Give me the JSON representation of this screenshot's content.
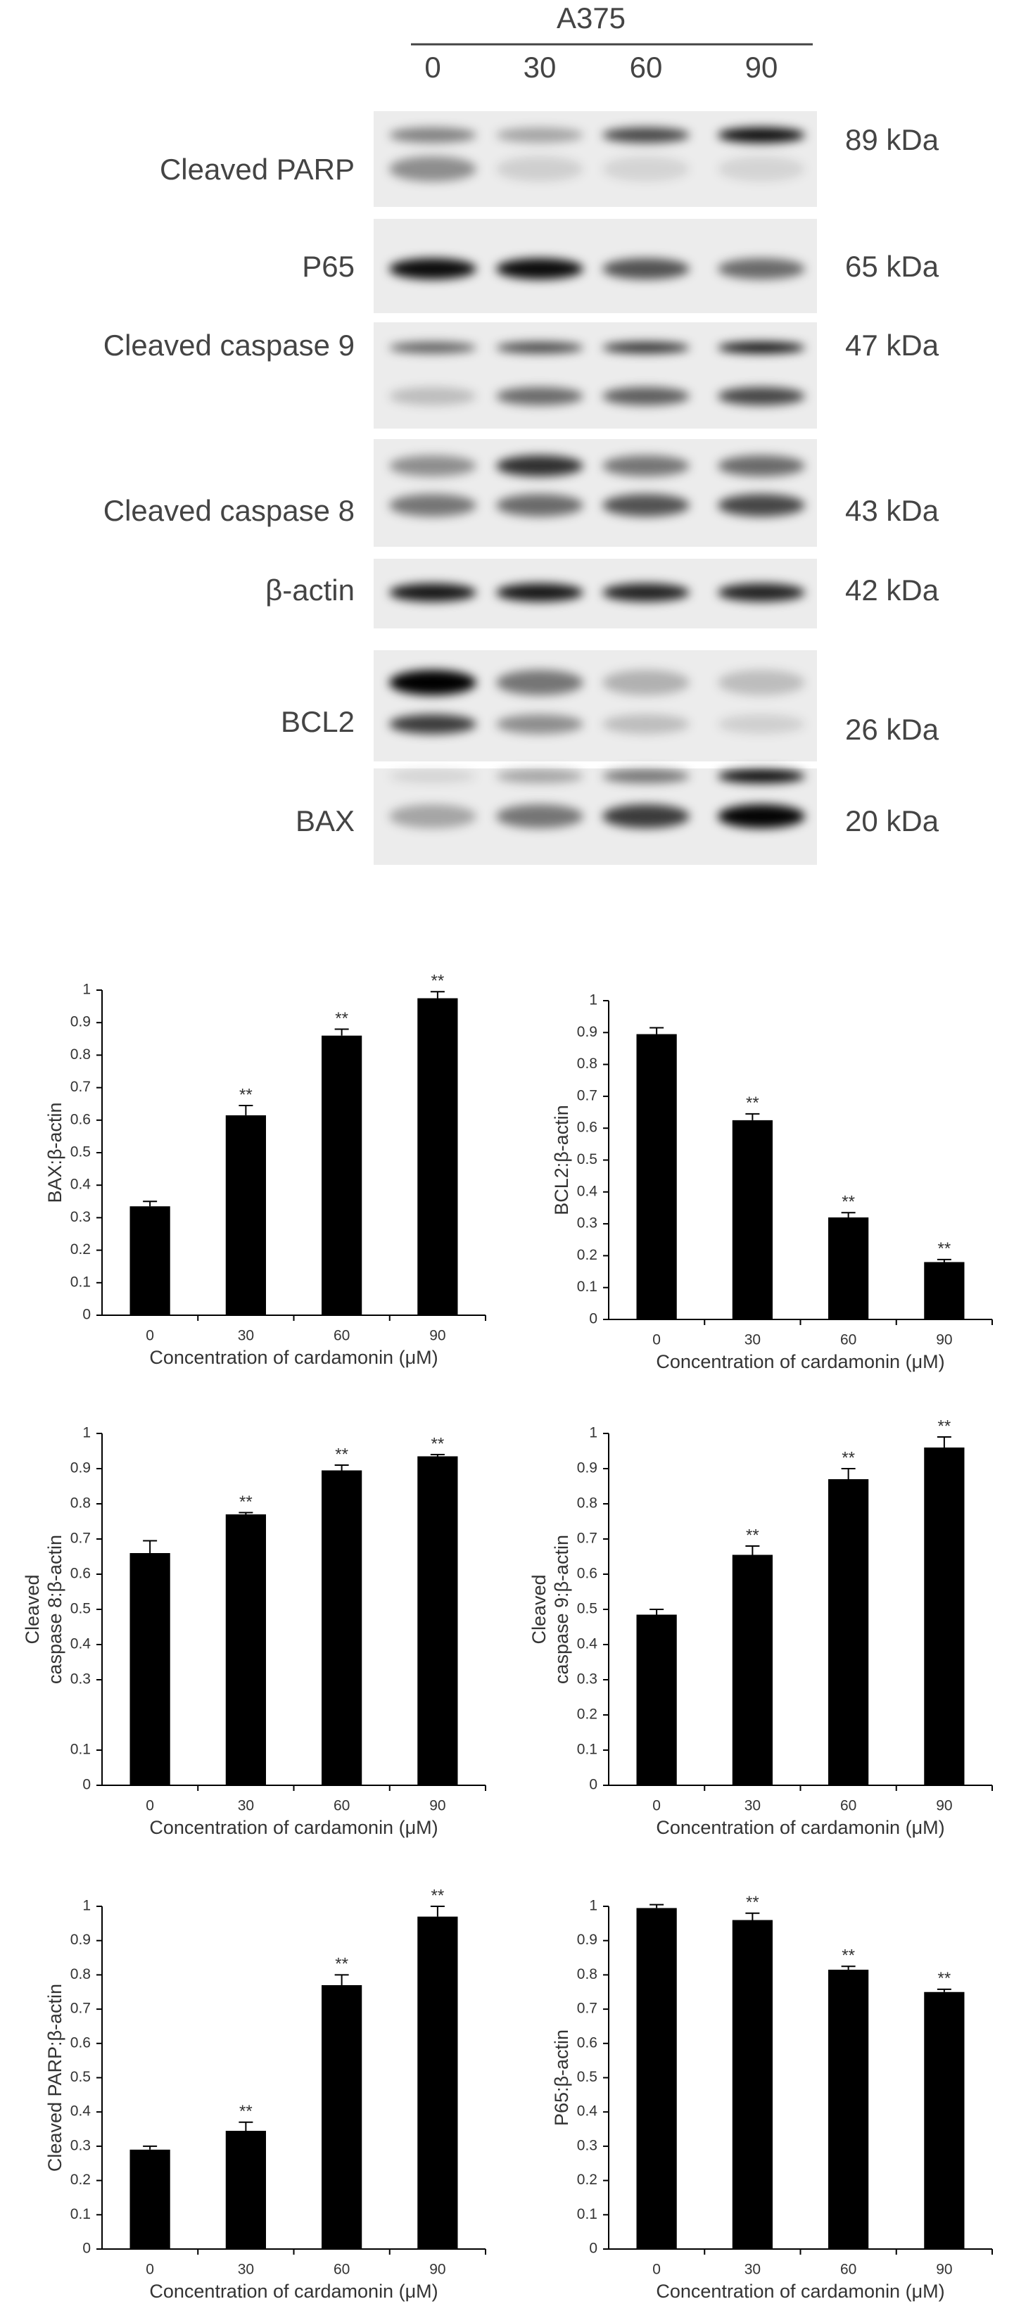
{
  "blot": {
    "cell_line": "A375",
    "lanes": [
      "0",
      "30",
      "60",
      "90"
    ],
    "rows": [
      {
        "label": "Cleaved PARP",
        "kda": "89 kDa"
      },
      {
        "label": "P65",
        "kda": "65 kDa"
      },
      {
        "label": "Cleaved caspase 9",
        "kda": "47 kDa"
      },
      {
        "label": "Cleaved caspase 8",
        "kda": "43 kDa"
      },
      {
        "label": "β-actin",
        "kda": "42 kDa"
      },
      {
        "label": "BCL2",
        "kda": "26 kDa"
      },
      {
        "label": "BAX",
        "kda": "20 kDa"
      }
    ]
  },
  "chart_data": [
    {
      "type": "bar",
      "ylabel": [
        "BAX:β-actin"
      ],
      "xlabel": "Concentration of cardamonin (μM)",
      "categories": [
        "0",
        "30",
        "60",
        "90"
      ],
      "values": [
        0.335,
        0.615,
        0.86,
        0.975
      ],
      "errors": [
        0.015,
        0.03,
        0.02,
        0.02
      ],
      "significance": [
        null,
        "**",
        "**",
        "**"
      ],
      "color": "#000000",
      "ylim": [
        0,
        1
      ],
      "yticks": [
        0,
        0.1,
        0.2,
        0.3,
        0.4,
        0.5,
        0.6,
        0.7,
        0.8,
        0.9,
        1
      ]
    },
    {
      "type": "bar",
      "ylabel": [
        "BCL2:β-actin"
      ],
      "xlabel": "Concentration of cardamonin (μM)",
      "categories": [
        "0",
        "30",
        "60",
        "90"
      ],
      "values": [
        0.895,
        0.625,
        0.32,
        0.18
      ],
      "errors": [
        0.02,
        0.02,
        0.015,
        0.008
      ],
      "significance": [
        null,
        "**",
        "**",
        "**"
      ],
      "color": "#000000",
      "ylim": [
        0,
        1
      ],
      "yticks": [
        0,
        0.1,
        0.2,
        0.3,
        0.4,
        0.5,
        0.6,
        0.7,
        0.8,
        0.9,
        1
      ]
    },
    {
      "type": "bar",
      "ylabel": [
        "Cleaved",
        "caspase 8:β-actin"
      ],
      "xlabel": "Concentration of cardamonin (μM)",
      "categories": [
        "0",
        "30",
        "60",
        "90"
      ],
      "values": [
        0.66,
        0.77,
        0.895,
        0.935
      ],
      "errors": [
        0.035,
        0.005,
        0.015,
        0.005
      ],
      "significance": [
        null,
        "**",
        "**",
        "**"
      ],
      "color": "#000000",
      "ylim": [
        0,
        1
      ],
      "yticks": [
        0,
        0.1,
        0.3,
        0.4,
        0.5,
        0.6,
        0.7,
        0.8,
        0.9,
        1
      ]
    },
    {
      "type": "bar",
      "ylabel": [
        "Cleaved",
        "caspase 9:β-actin"
      ],
      "xlabel": "Concentration of cardamonin (μM)",
      "categories": [
        "0",
        "30",
        "60",
        "90"
      ],
      "values": [
        0.485,
        0.655,
        0.87,
        0.96
      ],
      "errors": [
        0.015,
        0.025,
        0.03,
        0.03
      ],
      "significance": [
        null,
        "**",
        "**",
        "**"
      ],
      "color": "#000000",
      "ylim": [
        0,
        1
      ],
      "yticks": [
        0,
        0.1,
        0.2,
        0.3,
        0.4,
        0.5,
        0.6,
        0.7,
        0.8,
        0.9,
        1
      ]
    },
    {
      "type": "bar",
      "ylabel": [
        "Cleaved PARP:β-actin"
      ],
      "xlabel": "Concentration of cardamonin (μM)",
      "categories": [
        "0",
        "30",
        "60",
        "90"
      ],
      "values": [
        0.29,
        0.345,
        0.77,
        0.97
      ],
      "errors": [
        0.01,
        0.025,
        0.03,
        0.03
      ],
      "significance": [
        null,
        "**",
        "**",
        "**"
      ],
      "color": "#000000",
      "ylim": [
        0,
        1
      ],
      "yticks": [
        0,
        0.1,
        0.2,
        0.3,
        0.4,
        0.5,
        0.6,
        0.7,
        0.8,
        0.9,
        1
      ]
    },
    {
      "type": "bar",
      "ylabel": [
        "P65:β-actin"
      ],
      "xlabel": "Concentration of cardamonin (μM)",
      "categories": [
        "0",
        "30",
        "60",
        "90"
      ],
      "values": [
        0.995,
        0.96,
        0.815,
        0.75
      ],
      "errors": [
        0.01,
        0.02,
        0.01,
        0.008
      ],
      "significance": [
        null,
        "**",
        "**",
        "**"
      ],
      "color": "#000000",
      "ylim": [
        0,
        1
      ],
      "yticks": [
        0,
        0.1,
        0.2,
        0.3,
        0.4,
        0.5,
        0.6,
        0.7,
        0.8,
        0.9,
        1
      ]
    }
  ]
}
